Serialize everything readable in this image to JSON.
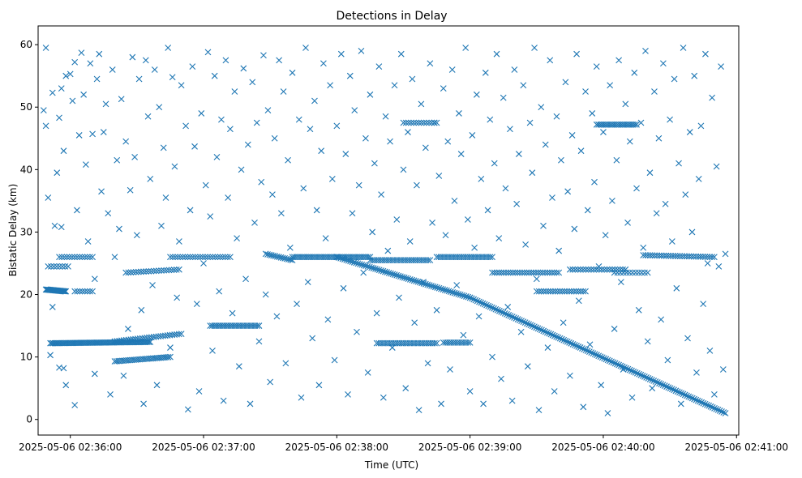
{
  "chart_data": {
    "type": "scatter",
    "title": "Detections in Delay",
    "xlabel": "Time (UTC)",
    "ylabel": "Bistatic Delay (km)",
    "marker": "x",
    "color": "#1f77b4",
    "x_ticks": [
      {
        "t": 0,
        "label": "2025-05-06 02:36:00"
      },
      {
        "t": 60,
        "label": "2025-05-06 02:37:00"
      },
      {
        "t": 120,
        "label": "2025-05-06 02:38:00"
      },
      {
        "t": 180,
        "label": "2025-05-06 02:39:00"
      },
      {
        "t": 240,
        "label": "2025-05-06 02:40:00"
      },
      {
        "t": 300,
        "label": "2025-05-06 02:41:00"
      }
    ],
    "y_ticks": [
      0,
      10,
      20,
      30,
      40,
      50,
      60
    ],
    "xlim": [
      -14.5,
      301
    ],
    "ylim": [
      -2.5,
      63
    ],
    "grid": false,
    "legend": "none",
    "tracks": [
      {
        "t_start": -11,
        "t_end": -2,
        "y_start": 20.8,
        "y_end": 20.5,
        "n": 26
      },
      {
        "t_start": -9,
        "t_end": 36,
        "y_start": 12.2,
        "y_end": 12.4,
        "n": 70
      },
      {
        "t_start": -10,
        "t_end": -1,
        "y_start": 24.5,
        "y_end": 24.5,
        "n": 8
      },
      {
        "t_start": -5,
        "t_end": 10,
        "y_start": 26,
        "y_end": 26,
        "n": 14
      },
      {
        "t_start": 2,
        "t_end": 10,
        "y_start": 20.5,
        "y_end": 20.5,
        "n": 8
      },
      {
        "t_start": 20,
        "t_end": 45,
        "y_start": 9.3,
        "y_end": 10,
        "n": 30
      },
      {
        "t_start": 20,
        "t_end": 50,
        "y_start": 12.5,
        "y_end": 13.7,
        "n": 30
      },
      {
        "t_start": 25,
        "t_end": 49,
        "y_start": 23.5,
        "y_end": 24,
        "n": 22
      },
      {
        "t_start": 45,
        "t_end": 72,
        "y_start": 26,
        "y_end": 26,
        "n": 25
      },
      {
        "t_start": 63,
        "t_end": 85,
        "y_start": 15,
        "y_end": 15,
        "n": 25
      },
      {
        "t_start": 88,
        "t_end": 100,
        "y_start": 26.5,
        "y_end": 25.5,
        "n": 15
      },
      {
        "t_start": 100,
        "t_end": 135,
        "y_start": 26,
        "y_end": 26,
        "n": 42
      },
      {
        "t_start": 120,
        "t_end": 180,
        "y_start": 26,
        "y_end": 19.5,
        "n": 70
      },
      {
        "t_start": 180,
        "t_end": 295,
        "y_start": 19.5,
        "y_end": 1,
        "n": 140
      },
      {
        "t_start": 135,
        "t_end": 162,
        "y_start": 25.5,
        "y_end": 25.5,
        "n": 30
      },
      {
        "t_start": 165,
        "t_end": 190,
        "y_start": 26,
        "y_end": 26,
        "n": 28
      },
      {
        "t_start": 138,
        "t_end": 165,
        "y_start": 12.2,
        "y_end": 12.2,
        "n": 30
      },
      {
        "t_start": 168,
        "t_end": 180,
        "y_start": 12.3,
        "y_end": 12.3,
        "n": 14
      },
      {
        "t_start": 150,
        "t_end": 165,
        "y_start": 47.5,
        "y_end": 47.5,
        "n": 14
      },
      {
        "t_start": 190,
        "t_end": 220,
        "y_start": 23.5,
        "y_end": 23.5,
        "n": 30
      },
      {
        "t_start": 210,
        "t_end": 232,
        "y_start": 20.5,
        "y_end": 20.5,
        "n": 22
      },
      {
        "t_start": 225,
        "t_end": 250,
        "y_start": 24,
        "y_end": 24,
        "n": 22
      },
      {
        "t_start": 237,
        "t_end": 255,
        "y_start": 47.2,
        "y_end": 47.2,
        "n": 22
      },
      {
        "t_start": 258,
        "t_end": 290,
        "y_start": 26.3,
        "y_end": 26,
        "n": 32
      },
      {
        "t_start": 245,
        "t_end": 260,
        "y_start": 23.5,
        "y_end": 23.5,
        "n": 12
      }
    ],
    "random_points": [
      [
        -12,
        49.5
      ],
      [
        -11,
        59.5
      ],
      [
        -11,
        47
      ],
      [
        -10,
        35.5
      ],
      [
        -9,
        10.3
      ],
      [
        -8,
        52.3
      ],
      [
        -8,
        18
      ],
      [
        -7,
        31
      ],
      [
        -6,
        39.5
      ],
      [
        -5,
        48.3
      ],
      [
        -5,
        8.3
      ],
      [
        -4,
        53
      ],
      [
        -4,
        30.8
      ],
      [
        -3,
        43
      ],
      [
        -3,
        8.2
      ],
      [
        -2,
        55
      ],
      [
        -2,
        5.5
      ],
      [
        0,
        55.3
      ],
      [
        1,
        51
      ],
      [
        2,
        57.2
      ],
      [
        2,
        2.3
      ],
      [
        3,
        33.5
      ],
      [
        4,
        45.5
      ],
      [
        5,
        58.7
      ],
      [
        6,
        52
      ],
      [
        7,
        40.8
      ],
      [
        8,
        28.5
      ],
      [
        9,
        57
      ],
      [
        10,
        45.7
      ],
      [
        11,
        22.5
      ],
      [
        11,
        7.3
      ],
      [
        12,
        54.5
      ],
      [
        13,
        58.5
      ],
      [
        14,
        36.5
      ],
      [
        15,
        46
      ],
      [
        16,
        50.5
      ],
      [
        17,
        33
      ],
      [
        18,
        4
      ],
      [
        19,
        56
      ],
      [
        20,
        26
      ],
      [
        21,
        41.5
      ],
      [
        22,
        30.5
      ],
      [
        23,
        51.3
      ],
      [
        24,
        7
      ],
      [
        25,
        44.5
      ],
      [
        26,
        14.5
      ],
      [
        27,
        36.7
      ],
      [
        28,
        58
      ],
      [
        29,
        42
      ],
      [
        30,
        29.5
      ],
      [
        31,
        54.5
      ],
      [
        32,
        17.5
      ],
      [
        33,
        2.5
      ],
      [
        34,
        57.5
      ],
      [
        35,
        48.5
      ],
      [
        36,
        38.5
      ],
      [
        37,
        21.5
      ],
      [
        38,
        56
      ],
      [
        39,
        5.5
      ],
      [
        40,
        50
      ],
      [
        41,
        31
      ],
      [
        42,
        43.5
      ],
      [
        43,
        35.5
      ],
      [
        44,
        59.5
      ],
      [
        45,
        11.5
      ],
      [
        46,
        54.8
      ],
      [
        47,
        40.5
      ],
      [
        48,
        19.5
      ],
      [
        49,
        28.5
      ],
      [
        50,
        53.5
      ],
      [
        52,
        47
      ],
      [
        53,
        1.6
      ],
      [
        54,
        33.5
      ],
      [
        55,
        56.5
      ],
      [
        56,
        43.7
      ],
      [
        57,
        18.5
      ],
      [
        58,
        4.5
      ],
      [
        59,
        49
      ],
      [
        60,
        25
      ],
      [
        61,
        37.5
      ],
      [
        62,
        58.8
      ],
      [
        63,
        32.5
      ],
      [
        64,
        11
      ],
      [
        65,
        55
      ],
      [
        66,
        42
      ],
      [
        67,
        20.5
      ],
      [
        68,
        48
      ],
      [
        69,
        3
      ],
      [
        70,
        57.5
      ],
      [
        71,
        35.5
      ],
      [
        72,
        46.5
      ],
      [
        73,
        17
      ],
      [
        74,
        52.5
      ],
      [
        75,
        29
      ],
      [
        76,
        8.5
      ],
      [
        77,
        40
      ],
      [
        78,
        56.2
      ],
      [
        79,
        22.5
      ],
      [
        80,
        44
      ],
      [
        81,
        2.5
      ],
      [
        82,
        54
      ],
      [
        83,
        31.5
      ],
      [
        84,
        47.5
      ],
      [
        85,
        12.5
      ],
      [
        86,
        38
      ],
      [
        87,
        58.3
      ],
      [
        88,
        20
      ],
      [
        89,
        49.5
      ],
      [
        90,
        6
      ],
      [
        91,
        36
      ],
      [
        92,
        45
      ],
      [
        93,
        16.5
      ],
      [
        94,
        57.5
      ],
      [
        95,
        33
      ],
      [
        96,
        52.5
      ],
      [
        97,
        9
      ],
      [
        98,
        41.5
      ],
      [
        99,
        27.5
      ],
      [
        100,
        55.5
      ],
      [
        102,
        18.5
      ],
      [
        103,
        48
      ],
      [
        104,
        3.5
      ],
      [
        105,
        37
      ],
      [
        106,
        59.5
      ],
      [
        107,
        22
      ],
      [
        108,
        46.5
      ],
      [
        109,
        13
      ],
      [
        110,
        51
      ],
      [
        111,
        33.5
      ],
      [
        112,
        5.5
      ],
      [
        113,
        43
      ],
      [
        114,
        57
      ],
      [
        115,
        29
      ],
      [
        116,
        16
      ],
      [
        117,
        53.5
      ],
      [
        118,
        38.5
      ],
      [
        119,
        9.5
      ],
      [
        120,
        47
      ],
      [
        122,
        58.5
      ],
      [
        123,
        21
      ],
      [
        124,
        42.5
      ],
      [
        125,
        4
      ],
      [
        126,
        55
      ],
      [
        127,
        33
      ],
      [
        128,
        49.5
      ],
      [
        129,
        14
      ],
      [
        130,
        37.5
      ],
      [
        131,
        59
      ],
      [
        132,
        23.5
      ],
      [
        133,
        45
      ],
      [
        134,
        7.5
      ],
      [
        135,
        52
      ],
      [
        136,
        30
      ],
      [
        137,
        41
      ],
      [
        138,
        17
      ],
      [
        139,
        56.5
      ],
      [
        140,
        36
      ],
      [
        141,
        3.5
      ],
      [
        142,
        48.5
      ],
      [
        143,
        27
      ],
      [
        144,
        44.5
      ],
      [
        145,
        11.5
      ],
      [
        146,
        53.5
      ],
      [
        147,
        32
      ],
      [
        148,
        19.5
      ],
      [
        149,
        58.5
      ],
      [
        150,
        40
      ],
      [
        151,
        5
      ],
      [
        152,
        46
      ],
      [
        153,
        28.5
      ],
      [
        154,
        54.5
      ],
      [
        155,
        15.5
      ],
      [
        156,
        37.5
      ],
      [
        157,
        1.5
      ],
      [
        158,
        50.5
      ],
      [
        159,
        22
      ],
      [
        160,
        43.5
      ],
      [
        161,
        9
      ],
      [
        162,
        57
      ],
      [
        163,
        31.5
      ],
      [
        164,
        47.5
      ],
      [
        165,
        17.5
      ],
      [
        166,
        39
      ],
      [
        167,
        2.5
      ],
      [
        168,
        53
      ],
      [
        169,
        29.5
      ],
      [
        170,
        44.5
      ],
      [
        171,
        8
      ],
      [
        172,
        56
      ],
      [
        173,
        35
      ],
      [
        174,
        21.5
      ],
      [
        175,
        49
      ],
      [
        176,
        42.5
      ],
      [
        177,
        13.5
      ],
      [
        178,
        59.5
      ],
      [
        179,
        32
      ],
      [
        180,
        4.5
      ],
      [
        181,
        45.5
      ],
      [
        182,
        27.5
      ],
      [
        183,
        52
      ],
      [
        184,
        16.5
      ],
      [
        185,
        38.5
      ],
      [
        186,
        2.5
      ],
      [
        187,
        55.5
      ],
      [
        188,
        33.5
      ],
      [
        189,
        48
      ],
      [
        190,
        10
      ],
      [
        191,
        41
      ],
      [
        192,
        58.5
      ],
      [
        193,
        29
      ],
      [
        194,
        6.5
      ],
      [
        195,
        51.5
      ],
      [
        196,
        37
      ],
      [
        197,
        18
      ],
      [
        198,
        46.5
      ],
      [
        199,
        3
      ],
      [
        200,
        56
      ],
      [
        201,
        34.5
      ],
      [
        202,
        42.5
      ],
      [
        203,
        14
      ],
      [
        204,
        53.5
      ],
      [
        205,
        28
      ],
      [
        206,
        8.5
      ],
      [
        207,
        47.5
      ],
      [
        208,
        39.5
      ],
      [
        209,
        59.5
      ],
      [
        210,
        22.5
      ],
      [
        211,
        1.5
      ],
      [
        212,
        50
      ],
      [
        213,
        31
      ],
      [
        214,
        44
      ],
      [
        215,
        11.5
      ],
      [
        216,
        57.5
      ],
      [
        217,
        35.5
      ],
      [
        218,
        4.5
      ],
      [
        219,
        48.5
      ],
      [
        220,
        27
      ],
      [
        221,
        41.5
      ],
      [
        222,
        15.5
      ],
      [
        223,
        54
      ],
      [
        224,
        36.5
      ],
      [
        225,
        7
      ],
      [
        226,
        45.5
      ],
      [
        227,
        30.5
      ],
      [
        228,
        58.5
      ],
      [
        229,
        19
      ],
      [
        230,
        43
      ],
      [
        231,
        2
      ],
      [
        232,
        52.5
      ],
      [
        233,
        33.5
      ],
      [
        234,
        12
      ],
      [
        235,
        49
      ],
      [
        236,
        38
      ],
      [
        237,
        56.5
      ],
      [
        238,
        24.5
      ],
      [
        239,
        5.5
      ],
      [
        240,
        46
      ],
      [
        241,
        29.5
      ],
      [
        242,
        1
      ],
      [
        243,
        53.5
      ],
      [
        244,
        35
      ],
      [
        245,
        14.5
      ],
      [
        246,
        41.5
      ],
      [
        247,
        57.5
      ],
      [
        248,
        22
      ],
      [
        249,
        8
      ],
      [
        250,
        50.5
      ],
      [
        251,
        31.5
      ],
      [
        252,
        44.5
      ],
      [
        253,
        3.5
      ],
      [
        254,
        55.5
      ],
      [
        255,
        37
      ],
      [
        256,
        17.5
      ],
      [
        257,
        47.5
      ],
      [
        258,
        27.5
      ],
      [
        259,
        59
      ],
      [
        260,
        12.5
      ],
      [
        261,
        39.5
      ],
      [
        262,
        5
      ],
      [
        263,
        52.5
      ],
      [
        264,
        33
      ],
      [
        265,
        45
      ],
      [
        266,
        16
      ],
      [
        267,
        57
      ],
      [
        268,
        34.5
      ],
      [
        269,
        9.5
      ],
      [
        270,
        48
      ],
      [
        271,
        28.5
      ],
      [
        272,
        54.5
      ],
      [
        273,
        21
      ],
      [
        274,
        41
      ],
      [
        275,
        2.5
      ],
      [
        276,
        59.5
      ],
      [
        277,
        36
      ],
      [
        278,
        13
      ],
      [
        279,
        46
      ],
      [
        280,
        30
      ],
      [
        281,
        55
      ],
      [
        282,
        7.5
      ],
      [
        283,
        38.5
      ],
      [
        284,
        47
      ],
      [
        285,
        18.5
      ],
      [
        286,
        58.5
      ],
      [
        287,
        25
      ],
      [
        288,
        11
      ],
      [
        289,
        51.5
      ],
      [
        290,
        4
      ],
      [
        291,
        40.5
      ],
      [
        292,
        24.5
      ],
      [
        293,
        56.5
      ],
      [
        294,
        8
      ],
      [
        295,
        26.5
      ]
    ]
  }
}
